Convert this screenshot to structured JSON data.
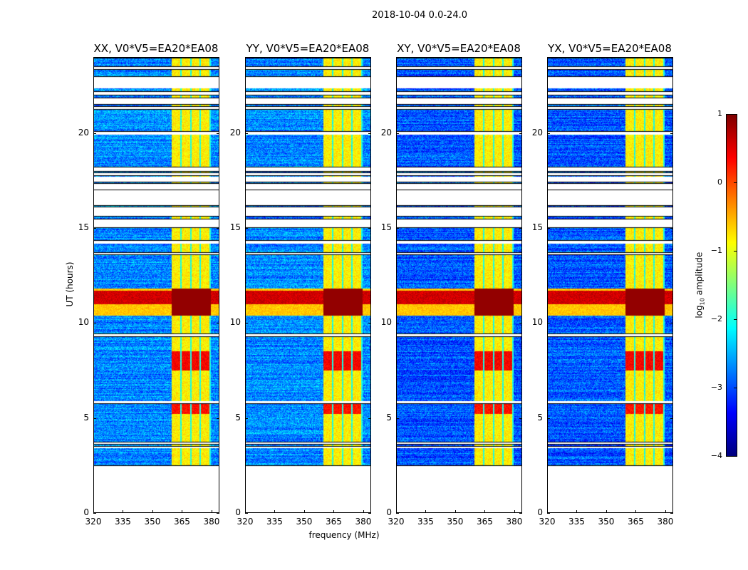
{
  "chart_data": {
    "type": "heatmap",
    "title": "2018-10-04 0.0-24.0",
    "xlabel": "frequency (MHz)",
    "ylabel": "UT (hours)",
    "xlim": [
      320,
      384
    ],
    "ylim": [
      0,
      24
    ],
    "xticks": [
      320,
      335,
      350,
      365,
      380
    ],
    "yticks": [
      0,
      5,
      10,
      15,
      20
    ],
    "colormap": "jet",
    "colorbar": {
      "label_prefix": "log",
      "label_sub": "10",
      "label_suffix": " amplitude",
      "range": [
        -4,
        1
      ],
      "ticks": [
        1,
        0,
        -1,
        -2,
        -3,
        -4
      ]
    },
    "panels": [
      {
        "title": "XX, V0*V5=EA20*EA08"
      },
      {
        "title": "YY, V0*V5=EA20*EA08"
      },
      {
        "title": "XY, V0*V5=EA20*EA08"
      },
      {
        "title": "YX, V0*V5=EA20*EA08"
      }
    ],
    "observed_intervals_hours": [
      [
        2.45,
        3.4
      ],
      [
        3.45,
        3.6
      ],
      [
        3.7,
        5.75
      ],
      [
        5.85,
        9.3
      ],
      [
        9.4,
        13.6
      ],
      [
        13.7,
        14.2
      ],
      [
        14.35,
        15.05
      ],
      [
        15.45,
        15.65
      ],
      [
        16.1,
        16.2
      ],
      [
        17.0,
        17.05
      ],
      [
        17.35,
        17.45
      ],
      [
        17.7,
        17.8
      ],
      [
        17.9,
        18.0
      ],
      [
        18.2,
        19.95
      ],
      [
        20.1,
        21.3
      ],
      [
        21.4,
        21.55
      ],
      [
        21.85,
        22.05
      ],
      [
        22.2,
        22.4
      ],
      [
        23.0,
        23.4
      ],
      [
        23.5,
        24.0
      ]
    ],
    "background_log_amplitude": -2.7,
    "rfi_band_mhz": [
      360,
      380
    ],
    "rfi_band_log_amplitude": -0.8,
    "broadband_rfi_hours": [
      10.4,
      11.8
    ],
    "broadband_rfi_log_amplitude": 0.2
  }
}
